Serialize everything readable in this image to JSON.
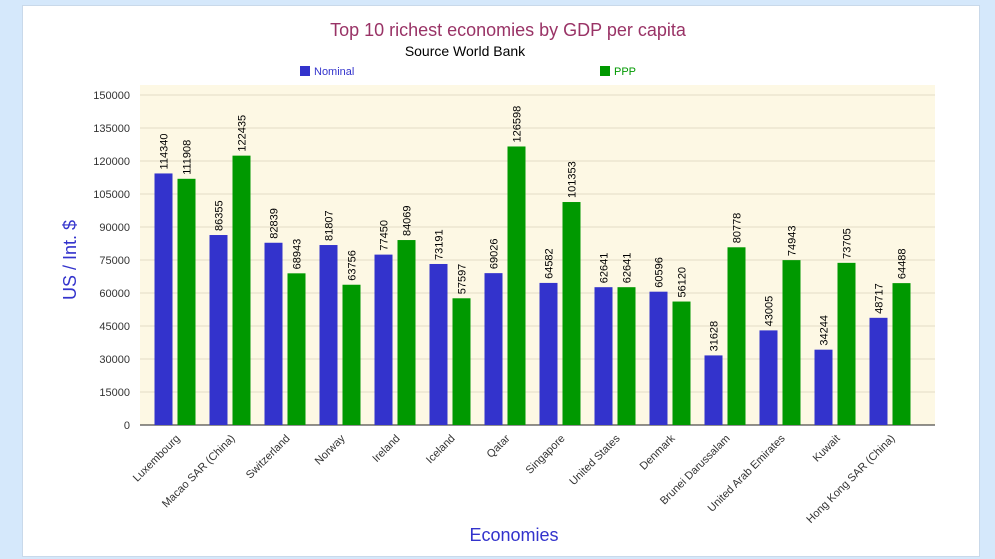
{
  "chart_data": {
    "type": "bar",
    "title": "Top 10 richest economies by GDP per capita",
    "subtitle": "Source World Bank",
    "xlabel": "Economies",
    "ylabel": "US / Int. $",
    "ylim": [
      0,
      150000
    ],
    "yticks": [
      0,
      15000,
      30000,
      45000,
      60000,
      75000,
      90000,
      105000,
      120000,
      135000,
      150000
    ],
    "grid": true,
    "legend_placement": "top",
    "categories": [
      "Luxembourg",
      "Macao SAR (China)",
      "Switzerland",
      "Norway",
      "Ireland",
      "Iceland",
      "Qatar",
      "Singapore",
      "United States",
      "Denmark",
      "Brunei Darussalam",
      "United Arab Emirates",
      "Kuwait",
      "Hong Kong SAR (China)"
    ],
    "series": [
      {
        "name": "Nominal",
        "color": "#3333cc",
        "values": [
          114340,
          86355,
          82839,
          81807,
          77450,
          73191,
          69026,
          64582,
          62641,
          60596,
          31628,
          43005,
          34244,
          48717
        ]
      },
      {
        "name": "PPP",
        "color": "#009900",
        "values": [
          111908,
          122435,
          68943,
          63756,
          84069,
          57597,
          126598,
          101353,
          62641,
          56120,
          80778,
          74943,
          73705,
          64488
        ]
      }
    ],
    "colors": {
      "title": "#993366",
      "axis_title": "#3333cc",
      "plot_background": "#fdf8e4",
      "gridline": "#e2dcc6"
    }
  }
}
